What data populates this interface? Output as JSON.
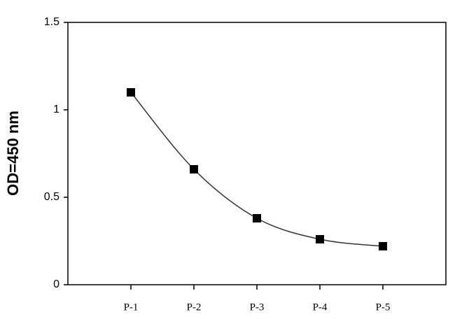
{
  "chart_data": {
    "type": "line",
    "y_label": "OD=450 nm",
    "categories": [
      "P-1",
      "P-2",
      "P-3",
      "P-4",
      "P-5"
    ],
    "values": [
      1.1,
      0.66,
      0.38,
      0.26,
      0.22
    ],
    "color": "#000000",
    "line_color": "#333333",
    "smooth": true,
    "ylim": [
      0,
      1.5
    ],
    "yticks": [
      0,
      0.5,
      1,
      1.5
    ],
    "grid": false
  }
}
